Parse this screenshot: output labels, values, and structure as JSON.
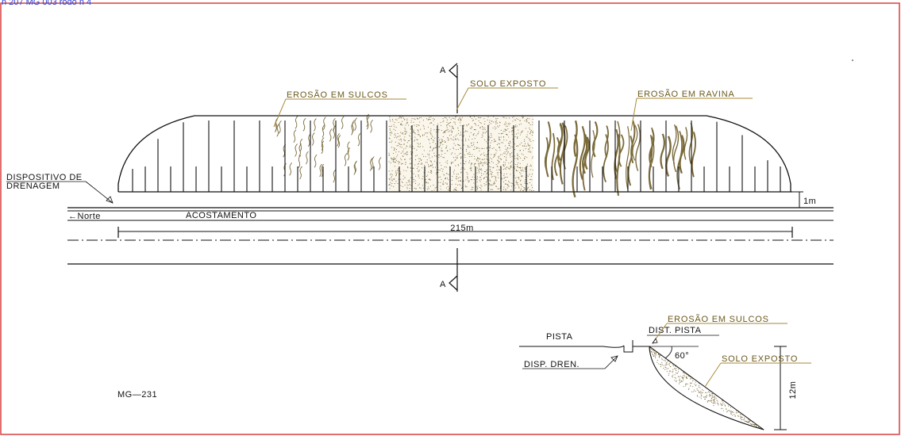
{
  "header_text": "n  207 MG 003 rodo n 4",
  "colors": {
    "frame": "#d94040",
    "ink": "#111111",
    "leader": "#a88a3a",
    "label": "#6b5a1e",
    "header": "#2a3fd6",
    "sediment": "#7a6a3a"
  },
  "plan": {
    "section_mark_top": "A",
    "section_mark_bottom": "A",
    "label_solo_exposto": "SOLO EXPOSTO",
    "label_erosao_sulcos": "EROSÃO EM SULCOS",
    "label_erosao_ravina": "EROSÃO EM RAVINA",
    "label_dispositivo_line1": "DISPOSITIVO DE",
    "label_dispositivo_line2": "DRENAGEM",
    "label_1m": "1m",
    "label_norte": "←Norte",
    "label_acostamento": "ACOSTAMENTO",
    "label_215m": "215m"
  },
  "section": {
    "label_pista": "PISTA",
    "label_disp_dren": "DISP. DREN.",
    "label_dist_pista": "DIST. PISTA",
    "label_erosao_sulcos": "EROSÃO EM SULCOS",
    "label_solo_exposto": "SOLO EXPOSTO",
    "label_angle": "60°",
    "label_height": "12m"
  },
  "road_id": "MG—231"
}
